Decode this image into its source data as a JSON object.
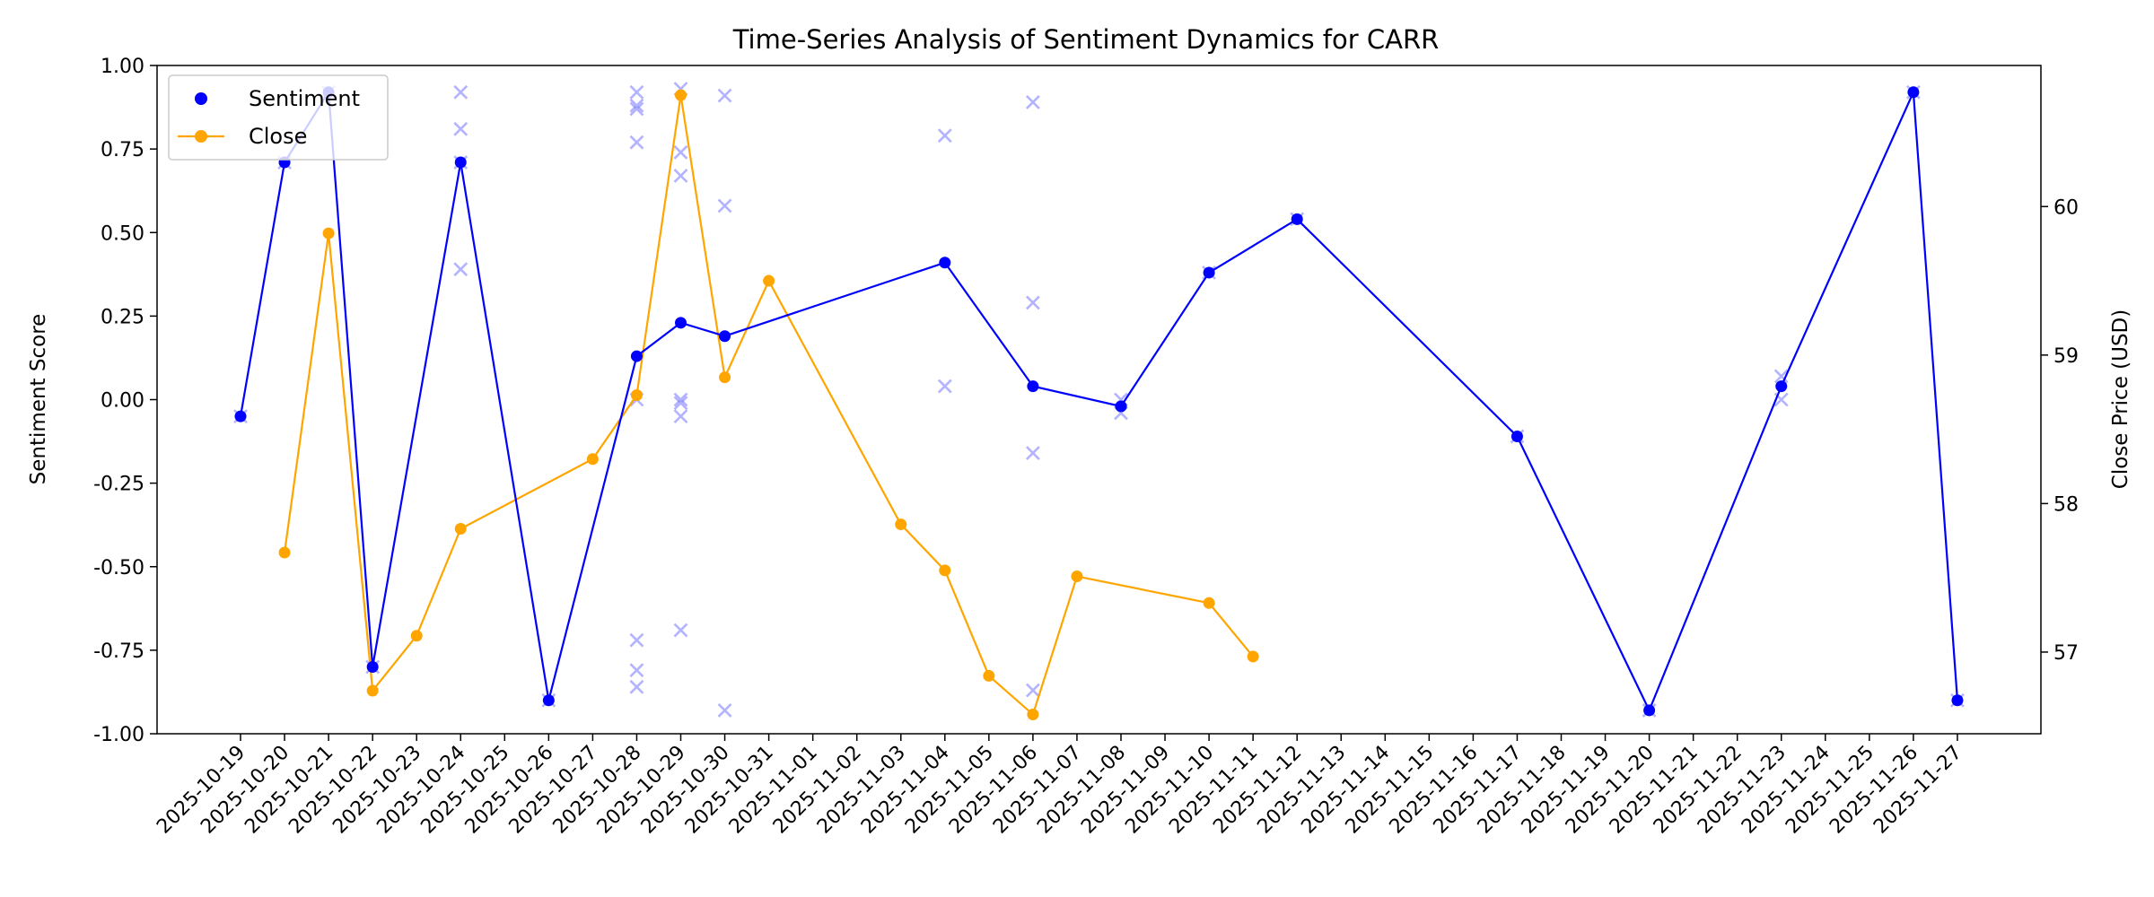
{
  "chart_data": {
    "type": "line",
    "title": "Time-Series Analysis of Sentiment Dynamics for CARR",
    "xlabel": "",
    "ylabel": "Sentiment Score",
    "y2label": "Close Price (USD)",
    "ylim": [
      -1.0,
      1.0
    ],
    "y2lim": [
      56.45,
      60.95
    ],
    "yticks": [
      "-1.00",
      "-0.75",
      "-0.50",
      "-0.25",
      "0.00",
      "0.25",
      "0.50",
      "0.75",
      "1.00"
    ],
    "y2ticks": [
      "57",
      "58",
      "59",
      "60"
    ],
    "grid": false,
    "legend": {
      "placement": "upper-left",
      "entries": [
        "Sentiment",
        "Close"
      ]
    },
    "x_categories": [
      "2025-10-19",
      "2025-10-20",
      "2025-10-21",
      "2025-10-22",
      "2025-10-23",
      "2025-10-24",
      "2025-10-25",
      "2025-10-26",
      "2025-10-27",
      "2025-10-28",
      "2025-10-29",
      "2025-10-30",
      "2025-10-31",
      "2025-11-01",
      "2025-11-02",
      "2025-11-03",
      "2025-11-04",
      "2025-11-05",
      "2025-11-06",
      "2025-11-07",
      "2025-11-08",
      "2025-11-09",
      "2025-11-10",
      "2025-11-11",
      "2025-11-12",
      "2025-11-13",
      "2025-11-14",
      "2025-11-15",
      "2025-11-16",
      "2025-11-17",
      "2025-11-18",
      "2025-11-19",
      "2025-11-20",
      "2025-11-21",
      "2025-11-22",
      "2025-11-23",
      "2025-11-24",
      "2025-11-25",
      "2025-11-26",
      "2025-11-27"
    ],
    "series": [
      {
        "name": "Sentiment",
        "axis": "left",
        "color": "#0000ff",
        "points": [
          [
            "2025-10-19",
            -0.05
          ],
          [
            "2025-10-20",
            0.71
          ],
          [
            "2025-10-21",
            0.92
          ],
          [
            "2025-10-22",
            -0.8
          ],
          [
            "2025-10-24",
            0.71
          ],
          [
            "2025-10-26",
            -0.9
          ],
          [
            "2025-10-28",
            0.13
          ],
          [
            "2025-10-29",
            0.23
          ],
          [
            "2025-10-30",
            0.19
          ],
          [
            "2025-11-04",
            0.41
          ],
          [
            "2025-11-06",
            0.04
          ],
          [
            "2025-11-08",
            -0.02
          ],
          [
            "2025-11-10",
            0.38
          ],
          [
            "2025-11-12",
            0.54
          ],
          [
            "2025-11-17",
            -0.11
          ],
          [
            "2025-11-20",
            -0.93
          ],
          [
            "2025-11-23",
            0.04
          ],
          [
            "2025-11-26",
            0.92
          ],
          [
            "2025-11-27",
            -0.9
          ]
        ]
      },
      {
        "name": "Close",
        "axis": "right",
        "color": "#ffa500",
        "points": [
          [
            "2025-10-20",
            57.67
          ],
          [
            "2025-10-21",
            59.82
          ],
          [
            "2025-10-22",
            56.74
          ],
          [
            "2025-10-23",
            57.11
          ],
          [
            "2025-10-24",
            57.83
          ],
          [
            "2025-10-27",
            58.3
          ],
          [
            "2025-10-28",
            58.73
          ],
          [
            "2025-10-29",
            60.75
          ],
          [
            "2025-10-30",
            58.85
          ],
          [
            "2025-10-31",
            59.5
          ],
          [
            "2025-11-03",
            57.86
          ],
          [
            "2025-11-04",
            57.55
          ],
          [
            "2025-11-05",
            56.84
          ],
          [
            "2025-11-06",
            56.58
          ],
          [
            "2025-11-07",
            57.51
          ],
          [
            "2025-11-10",
            57.33
          ],
          [
            "2025-11-11",
            56.97
          ]
        ]
      }
    ],
    "raw_sentiment_markers": {
      "marker": "x",
      "color": "#8080ff",
      "points": [
        [
          "2025-10-19",
          -0.05
        ],
        [
          "2025-10-20",
          0.71
        ],
        [
          "2025-10-21",
          0.92
        ],
        [
          "2025-10-22",
          -0.8
        ],
        [
          "2025-10-24",
          0.92
        ],
        [
          "2025-10-24",
          0.81
        ],
        [
          "2025-10-24",
          0.71
        ],
        [
          "2025-10-24",
          0.39
        ],
        [
          "2025-10-26",
          -0.9
        ],
        [
          "2025-10-28",
          0.92
        ],
        [
          "2025-10-28",
          0.88
        ],
        [
          "2025-10-28",
          0.87
        ],
        [
          "2025-10-28",
          0.77
        ],
        [
          "2025-10-28",
          0.0
        ],
        [
          "2025-10-28",
          -0.72
        ],
        [
          "2025-10-28",
          -0.81
        ],
        [
          "2025-10-28",
          -0.86
        ],
        [
          "2025-10-29",
          0.93
        ],
        [
          "2025-10-29",
          0.74
        ],
        [
          "2025-10-29",
          0.67
        ],
        [
          "2025-10-29",
          0.0
        ],
        [
          "2025-10-29",
          -0.01
        ],
        [
          "2025-10-29",
          -0.05
        ],
        [
          "2025-10-29",
          -0.69
        ],
        [
          "2025-10-30",
          0.91
        ],
        [
          "2025-10-30",
          0.58
        ],
        [
          "2025-10-30",
          -0.93
        ],
        [
          "2025-11-04",
          0.79
        ],
        [
          "2025-11-04",
          0.04
        ],
        [
          "2025-11-06",
          0.89
        ],
        [
          "2025-11-06",
          0.29
        ],
        [
          "2025-11-06",
          -0.16
        ],
        [
          "2025-11-06",
          -0.87
        ],
        [
          "2025-11-08",
          0.0
        ],
        [
          "2025-11-08",
          -0.04
        ],
        [
          "2025-11-10",
          0.38
        ],
        [
          "2025-11-12",
          0.54
        ],
        [
          "2025-11-17",
          -0.11
        ],
        [
          "2025-11-20",
          -0.93
        ],
        [
          "2025-11-23",
          0.07
        ],
        [
          "2025-11-23",
          0.0
        ],
        [
          "2025-11-26",
          0.92
        ],
        [
          "2025-11-27",
          -0.9
        ]
      ]
    }
  }
}
